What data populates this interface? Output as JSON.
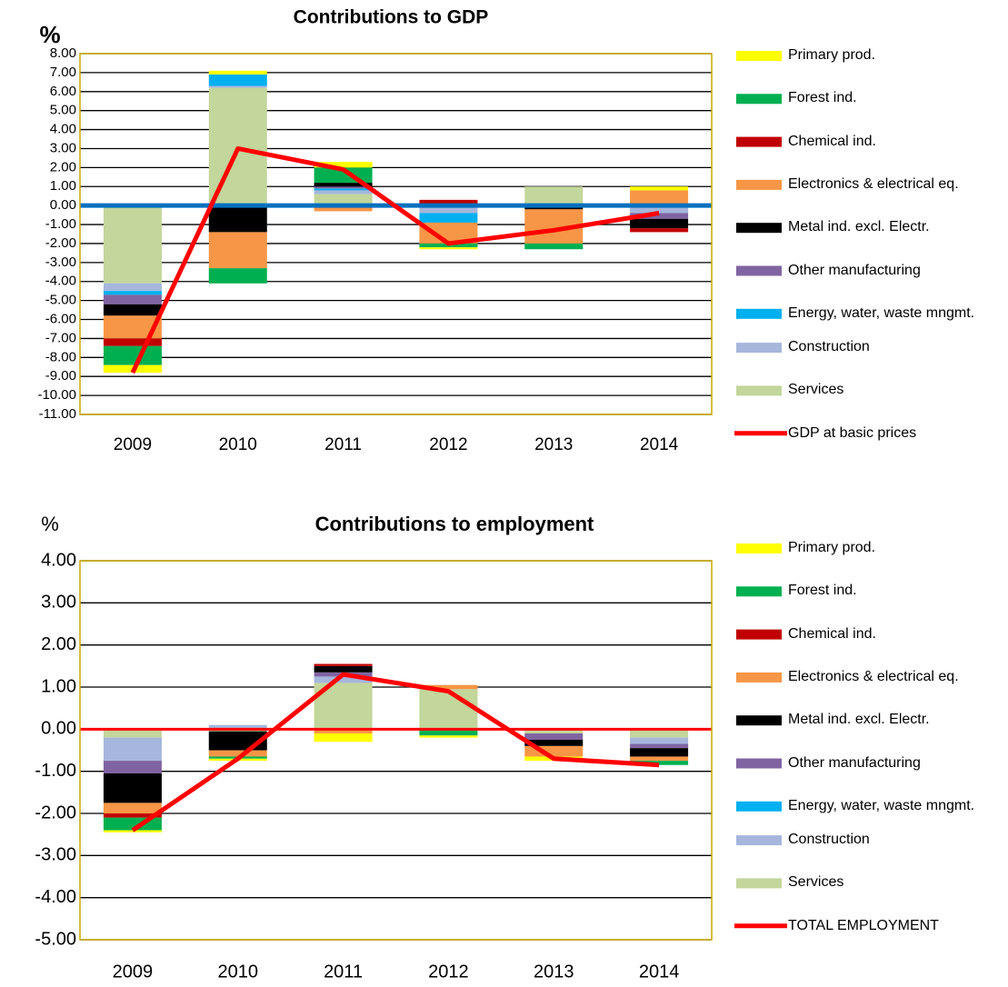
{
  "chart_data": [
    {
      "type": "bar",
      "stacked": true,
      "title": "Contributions to GDP",
      "y_label": "%",
      "categories": [
        "2009",
        "2010",
        "2011",
        "2012",
        "2013",
        "2014"
      ],
      "ylim": [
        -11,
        8
      ],
      "yticks": [
        {
          "value": 8,
          "label": "8.00"
        },
        {
          "value": 7,
          "label": "7.00"
        },
        {
          "value": 6,
          "label": "6.00"
        },
        {
          "value": 5,
          "label": "5.00"
        },
        {
          "value": 4,
          "label": "4.00"
        },
        {
          "value": 3,
          "label": "3.00"
        },
        {
          "value": 2,
          "label": "2.00"
        },
        {
          "value": 1,
          "label": "1.00"
        },
        {
          "value": 0,
          "label": "0.00"
        },
        {
          "value": -1,
          "label": "-1.00"
        },
        {
          "value": -2,
          "label": "-2.00"
        },
        {
          "value": -3,
          "label": "-3.00"
        },
        {
          "value": -4,
          "label": "-4.00"
        },
        {
          "value": -5,
          "label": "-5.00"
        },
        {
          "value": -6,
          "label": "-6.00"
        },
        {
          "value": -7,
          "label": "-7.00"
        },
        {
          "value": -8,
          "label": "-8.00"
        },
        {
          "value": -9,
          "label": "-9.00"
        },
        {
          "value": -10,
          "label": "-10.00"
        },
        {
          "value": -11,
          "label": "-11.00"
        }
      ],
      "grid": true,
      "zero_line_color": "#0070c0",
      "legend": "right",
      "series": [
        {
          "name": "Primary prod.",
          "color": "#ffff00",
          "values": [
            -0.4,
            0.2,
            0.3,
            -0.1,
            0,
            0.2
          ]
        },
        {
          "name": "Forest ind.",
          "color": "#00b050",
          "values": [
            -1.0,
            -0.8,
            0.8,
            -0.2,
            -0.3,
            0
          ]
        },
        {
          "name": "Chemical ind.",
          "color": "#c00000",
          "values": [
            -0.4,
            0,
            0,
            0.2,
            0,
            -0.2
          ]
        },
        {
          "name": "Electronics & electrical eq.",
          "color": "#f79646",
          "values": [
            -1.2,
            -1.9,
            -0.3,
            -1.1,
            -1.8,
            0.7
          ]
        },
        {
          "name": "Metal ind. excl. Electr.",
          "color": "#000000",
          "values": [
            -0.6,
            -1.4,
            0.2,
            0,
            -0.2,
            -0.5
          ]
        },
        {
          "name": "Other manufacturing",
          "color": "#8064a2",
          "values": [
            -0.5,
            0,
            0.1,
            0,
            0,
            -0.3
          ]
        },
        {
          "name": "Energy, water, waste mngmt.",
          "color": "#00b0f0",
          "values": [
            -0.2,
            0.6,
            0.1,
            -0.5,
            0,
            0
          ]
        },
        {
          "name": "Construction",
          "color": "#a6b6dc",
          "values": [
            -0.4,
            0.1,
            0.2,
            -0.4,
            0,
            -0.4
          ]
        },
        {
          "name": "Services",
          "color": "#c3d69b",
          "values": [
            -4.1,
            6.2,
            0.6,
            0.1,
            1.0,
            0.1
          ]
        },
        {
          "name": "GDP at basic prices",
          "color": "#ff0000",
          "kind": "line",
          "values": [
            -8.8,
            3.0,
            1.9,
            -2.0,
            -1.3,
            -0.4
          ]
        }
      ]
    },
    {
      "type": "bar",
      "stacked": true,
      "title": "Contributions to employment",
      "y_label": "%",
      "categories": [
        "2009",
        "2010",
        "2011",
        "2012",
        "2013",
        "2014"
      ],
      "ylim": [
        -5,
        4
      ],
      "yticks": [
        {
          "value": 4,
          "label": "4.00"
        },
        {
          "value": 3,
          "label": "3.00"
        },
        {
          "value": 2,
          "label": "2.00"
        },
        {
          "value": 1,
          "label": "1.00"
        },
        {
          "value": 0,
          "label": "0.00"
        },
        {
          "value": -1,
          "label": "-1.00"
        },
        {
          "value": -2,
          "label": "-2.00"
        },
        {
          "value": -3,
          "label": "-3.00"
        },
        {
          "value": -4,
          "label": "-4.00"
        },
        {
          "value": -5,
          "label": "-5.00"
        }
      ],
      "grid": true,
      "zero_line_color": "#ff0000",
      "legend": "right",
      "series": [
        {
          "name": "Primary prod.",
          "color": "#ffff00",
          "values": [
            -0.05,
            -0.05,
            -0.2,
            -0.05,
            -0.1,
            0
          ]
        },
        {
          "name": "Forest ind.",
          "color": "#00b050",
          "values": [
            -0.3,
            -0.05,
            0,
            -0.15,
            0,
            -0.1
          ]
        },
        {
          "name": "Chemical ind.",
          "color": "#c00000",
          "values": [
            -0.1,
            0,
            0.05,
            0,
            0,
            0
          ]
        },
        {
          "name": "Electronics & electrical eq.",
          "color": "#f79646",
          "values": [
            -0.25,
            -0.15,
            -0.1,
            0.1,
            -0.25,
            -0.1
          ]
        },
        {
          "name": "Metal ind. excl. Electr.",
          "color": "#000000",
          "values": [
            -0.7,
            -0.45,
            0.15,
            0,
            -0.15,
            -0.2
          ]
        },
        {
          "name": "Other manufacturing",
          "color": "#8064a2",
          "values": [
            -0.3,
            0,
            0.1,
            0,
            -0.15,
            -0.1
          ]
        },
        {
          "name": "Energy, water, waste mngmt.",
          "color": "#00b0f0",
          "values": [
            0,
            0,
            0,
            0,
            0,
            0
          ]
        },
        {
          "name": "Construction",
          "color": "#a6b6dc",
          "values": [
            -0.55,
            0.1,
            0.15,
            0,
            0,
            -0.15
          ]
        },
        {
          "name": "Services",
          "color": "#c3d69b",
          "values": [
            -0.2,
            -0.05,
            1.1,
            0.95,
            -0.1,
            -0.2
          ]
        },
        {
          "name": "TOTAL EMPLOYMENT",
          "color": "#ff0000",
          "kind": "line",
          "values": [
            -2.4,
            -0.7,
            1.3,
            0.9,
            -0.7,
            -0.85
          ]
        }
      ]
    }
  ]
}
